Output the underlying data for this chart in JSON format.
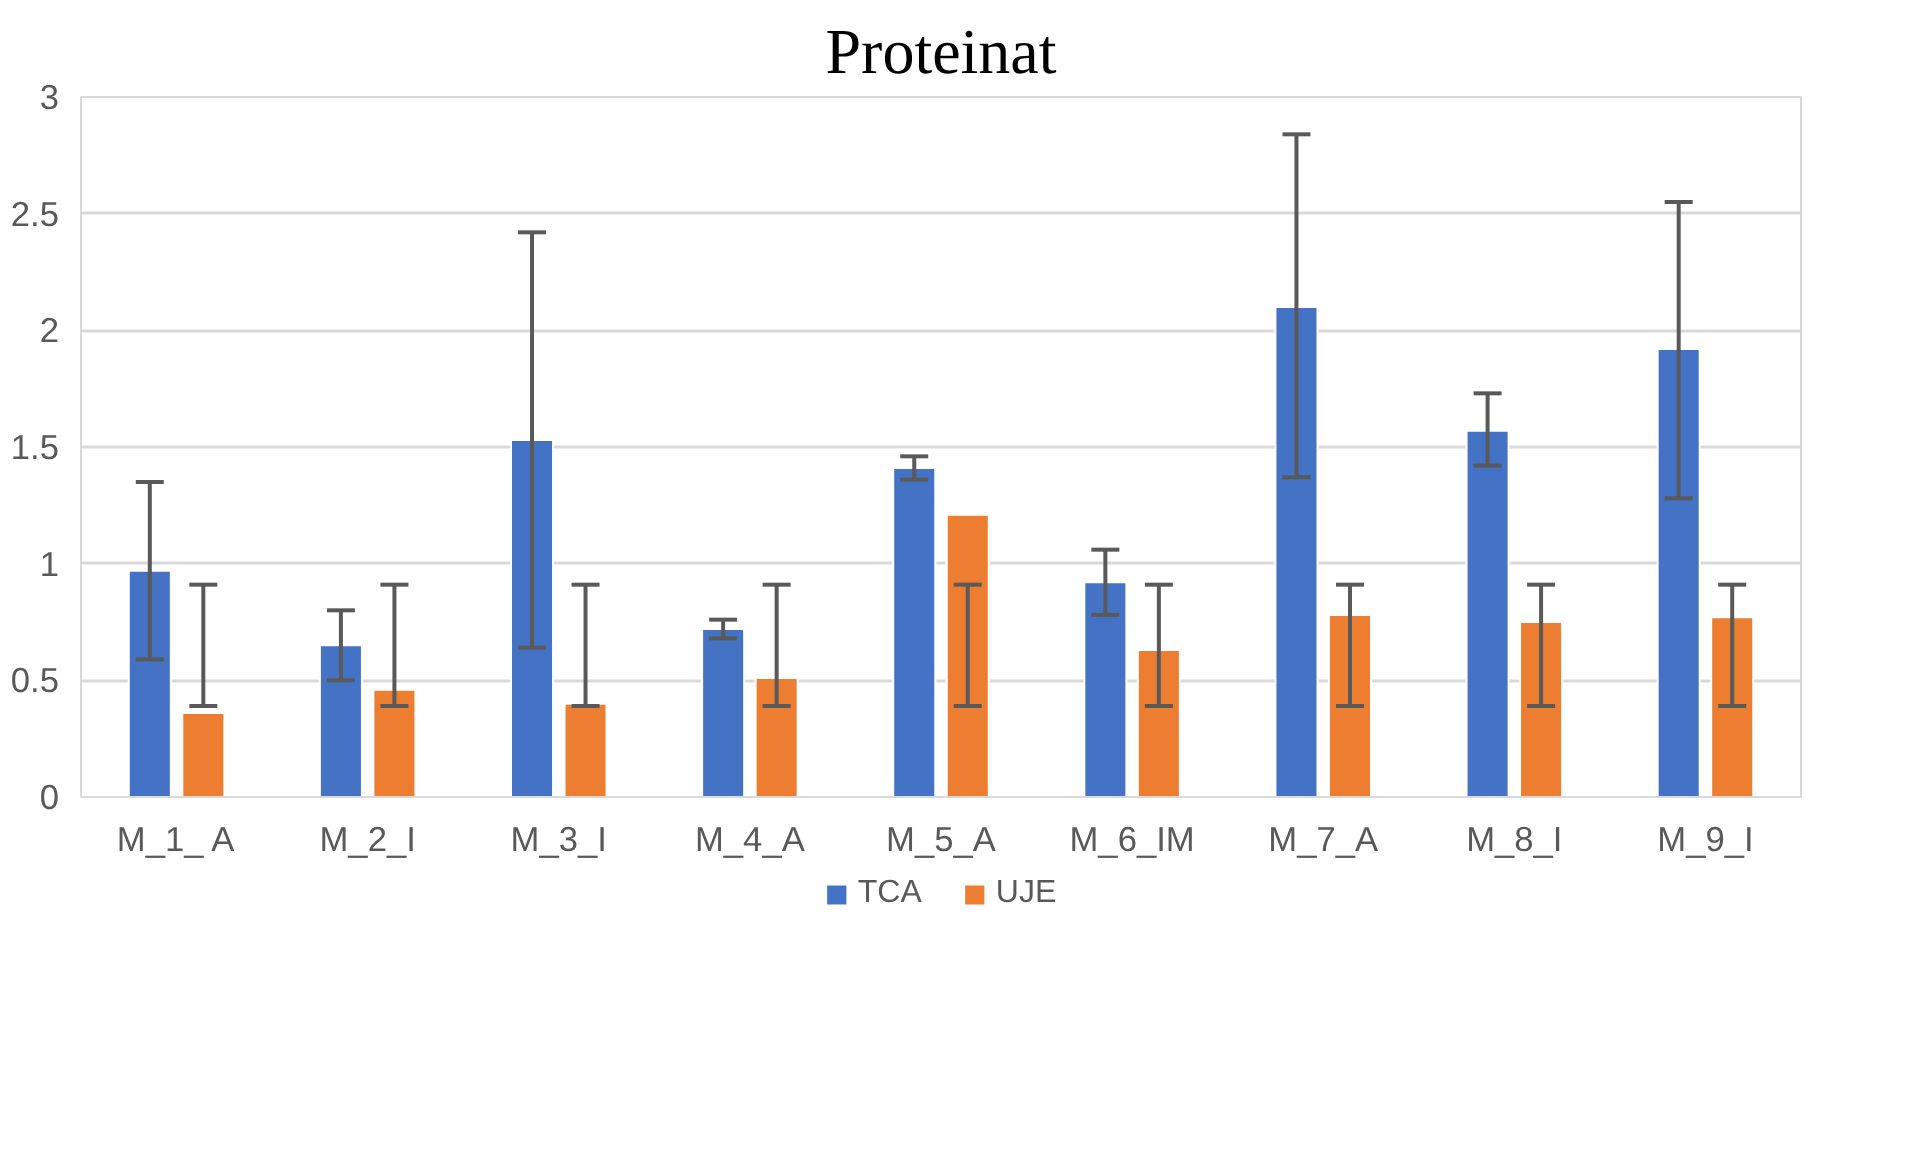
{
  "chart_data": {
    "type": "bar",
    "title": "Proteinat",
    "categories": [
      "M_1_ A",
      "M_2_I",
      "M_3_I",
      "M_4_A",
      "M_5_A",
      "M_6_IM",
      "M_7_A",
      "M_8_I",
      "M_9_I"
    ],
    "series": [
      {
        "name": "TCA",
        "color": "#4472c4",
        "values": [
          0.97,
          0.65,
          1.53,
          0.72,
          1.41,
          0.92,
          2.1,
          1.57,
          1.92
        ],
        "errors": [
          [
            0.59,
            1.35
          ],
          [
            0.5,
            0.8
          ],
          [
            0.64,
            2.42
          ],
          [
            0.68,
            0.76
          ],
          [
            1.36,
            1.46
          ],
          [
            0.78,
            1.06
          ],
          [
            1.37,
            2.84
          ],
          [
            1.42,
            1.73
          ],
          [
            1.28,
            2.55
          ]
        ]
      },
      {
        "name": "UJE",
        "color": "#ed7d31",
        "values": [
          0.36,
          0.46,
          0.4,
          0.51,
          1.21,
          0.63,
          0.78,
          0.75,
          0.77
        ],
        "errors": [
          [
            0.39,
            0.91
          ],
          [
            0.39,
            0.91
          ],
          [
            0.39,
            0.91
          ],
          [
            0.39,
            0.91
          ],
          [
            0.39,
            0.91
          ],
          [
            0.39,
            0.91
          ],
          [
            0.39,
            0.91
          ],
          [
            0.39,
            0.91
          ],
          [
            0.39,
            0.91
          ]
        ]
      }
    ],
    "ylim": [
      0,
      3
    ],
    "yticks": [
      0,
      0.5,
      1,
      1.5,
      2,
      2.5,
      3
    ],
    "grid": "y",
    "legend": "bottom"
  }
}
